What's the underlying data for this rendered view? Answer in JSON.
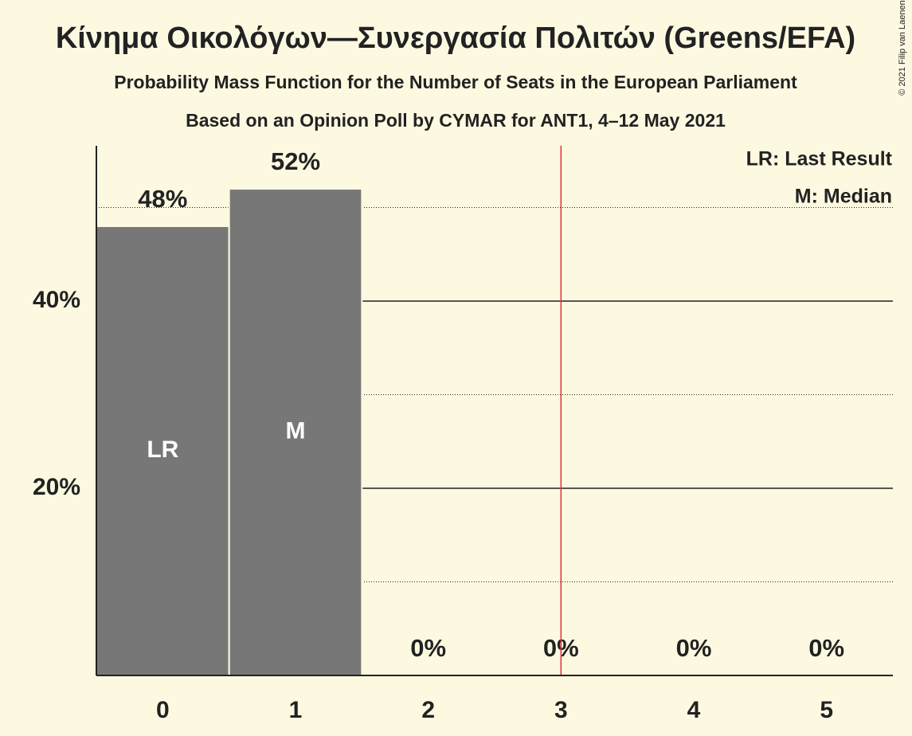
{
  "chart_data": {
    "type": "bar",
    "title": "Κίνημα Οικολόγων—Συνεργασία Πολιτών (Greens/EFA)",
    "subtitle": "Probability Mass Function for the Number of Seats in the European Parliament",
    "subtitle2": "Based on an Opinion Poll by CYMAR for ANT1, 4–12 May 2021",
    "copyright": "© 2021 Filip van Laenen",
    "categories": [
      "0",
      "1",
      "2",
      "3",
      "4",
      "5"
    ],
    "values": [
      48,
      52,
      0,
      0,
      0,
      0
    ],
    "value_labels": [
      "48%",
      "52%",
      "0%",
      "0%",
      "0%",
      "0%"
    ],
    "bar_annotations": [
      {
        "index": 0,
        "text": "LR"
      },
      {
        "index": 1,
        "text": "M"
      }
    ],
    "color": "#777777",
    "ylim": [
      0,
      56.6
    ],
    "yticks": [
      {
        "value": 20,
        "label": "20%"
      },
      {
        "value": 40,
        "label": "40%"
      }
    ],
    "minor_grid": [
      10,
      30,
      50
    ],
    "grid": true,
    "last_result_x": 3.5,
    "last_result_color": "#e0303a",
    "legend": [
      "LR: Last Result",
      "M: Median"
    ]
  }
}
